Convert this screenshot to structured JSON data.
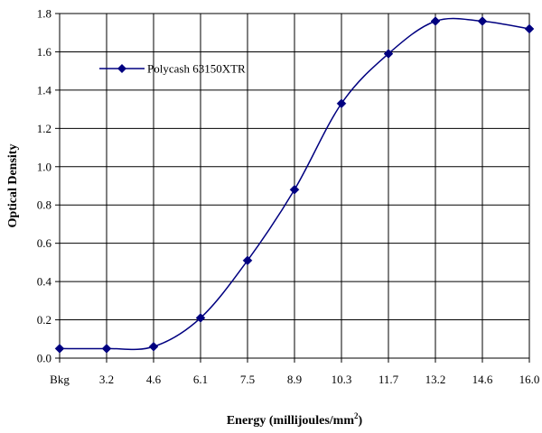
{
  "chart_data": {
    "type": "line",
    "title": "",
    "xlabel": "Energy (millijoules/mm",
    "xlabel_sup": "2",
    "xlabel_end": ")",
    "ylabel": "Optical Density",
    "categories": [
      "Bkg",
      "3.2",
      "4.6",
      "6.1",
      "7.5",
      "8.9",
      "10.3",
      "11.7",
      "13.2",
      "14.6",
      "16.0"
    ],
    "series": [
      {
        "name": "Polycash 63150XTR",
        "color": "#000080",
        "marker": "diamond",
        "smooth": true,
        "values": [
          0.05,
          0.05,
          0.06,
          0.21,
          0.51,
          0.88,
          1.33,
          1.59,
          1.76,
          1.76,
          1.72
        ]
      }
    ],
    "ylim": [
      0,
      1.8
    ],
    "yticks": [
      "0.0",
      "0.2",
      "0.4",
      "0.6",
      "0.8",
      "1.0",
      "1.2",
      "1.4",
      "1.6",
      "1.8"
    ],
    "grid": true,
    "legend_position": "top-left"
  }
}
